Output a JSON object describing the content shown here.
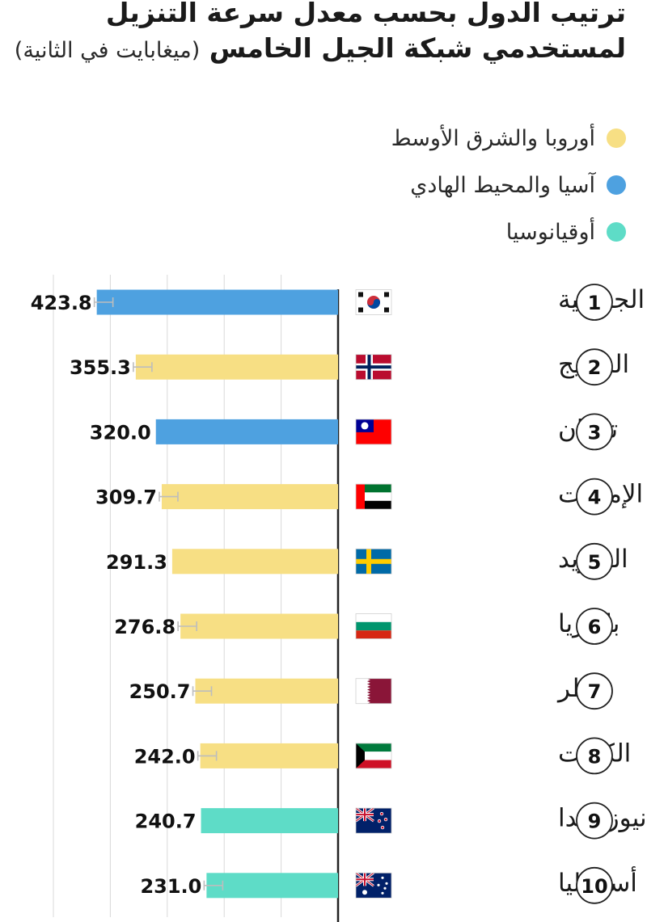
{
  "title": {
    "line1": "ترتيب الدول بحسب معدل سرعة التنزيل",
    "line2": "لمستخدمي شبكة الجيل الخامس",
    "unit": "(ميغابايت في الثانية)"
  },
  "legend": [
    {
      "label": "أوروبا والشرق الأوسط",
      "color": "#f7df84"
    },
    {
      "label": "آسيا والمحيط الهادي",
      "color": "#4ea1e0"
    },
    {
      "label": "أوقيانوسيا",
      "color": "#5edcc7"
    }
  ],
  "colors": {
    "europe_mideast": "#f7df84",
    "asia_pacific": "#4ea1e0",
    "oceania": "#5edcc7",
    "axis": "#222222",
    "gridline": "#d9d9d9"
  },
  "chart_data": {
    "type": "bar",
    "orientation": "horizontal",
    "direction": "right-to-left",
    "ranks": [
      "1",
      "2",
      "3",
      "4",
      "5",
      "6",
      "7",
      "8",
      "9",
      "10"
    ],
    "categories": [
      "كوريا الجنـوبية",
      "النرويج",
      "تايوان",
      "الإمارات",
      "السويد",
      "بلغاريا",
      "قطر",
      "الكويت",
      "نيوزيلاندا",
      "أستراليا"
    ],
    "values": [
      423.8,
      355.3,
      320.0,
      309.7,
      291.3,
      276.8,
      250.7,
      242.0,
      240.7,
      231.0
    ],
    "value_labels": [
      "423.8",
      "355.3",
      "320.0",
      "309.7",
      "291.3",
      "276.8",
      "250.7",
      "242.0",
      "240.7",
      "231.0"
    ],
    "regions": [
      "asia_pacific",
      "europe_mideast",
      "asia_pacific",
      "europe_mideast",
      "europe_mideast",
      "europe_mideast",
      "europe_mideast",
      "europe_mideast",
      "oceania",
      "oceania"
    ],
    "flags": [
      "south-korea-flag",
      "norway-flag",
      "taiwan-flag",
      "uae-flag",
      "sweden-flag",
      "bulgaria-flag",
      "qatar-flag",
      "kuwait-flag",
      "new-zealand-flag",
      "australia-flag"
    ],
    "error_bar": [
      true,
      true,
      false,
      true,
      false,
      true,
      true,
      true,
      false,
      true
    ],
    "xlim": [
      0,
      550
    ],
    "gridlines": [
      100,
      200,
      300,
      400,
      500
    ],
    "grid": true,
    "legend_position": "top-right"
  }
}
